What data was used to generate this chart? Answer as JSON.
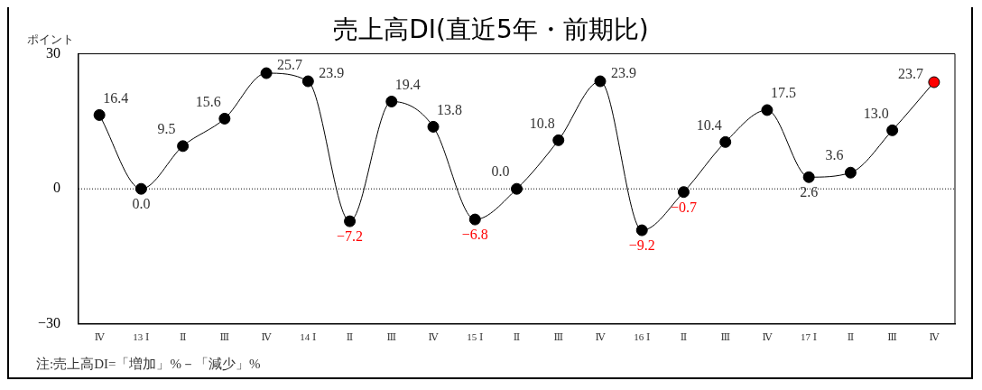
{
  "chart_data": {
    "type": "line",
    "title": "売上高DI(直近5年・前期比)",
    "ylabel": "ポイント",
    "categories": [
      "Ⅳ",
      "13 Ⅰ",
      "Ⅱ",
      "Ⅲ",
      "Ⅳ",
      "14 Ⅰ",
      "Ⅱ",
      "Ⅲ",
      "Ⅳ",
      "15 Ⅰ",
      "Ⅱ",
      "Ⅲ",
      "Ⅳ",
      "16 Ⅰ",
      "Ⅱ",
      "Ⅲ",
      "Ⅳ",
      "17 Ⅰ",
      "Ⅱ",
      "Ⅲ",
      "Ⅳ"
    ],
    "series": [
      {
        "color": "#000000",
        "values": [
          16.4,
          0.0,
          9.5,
          15.6,
          25.7,
          23.9,
          -7.2,
          19.4,
          13.8,
          -6.8,
          0.0,
          10.8,
          23.9,
          -9.2,
          -0.7,
          10.4,
          17.5,
          2.6,
          3.6,
          13.0,
          23.7
        ],
        "colors": [
          "#000000",
          "#000000",
          "#000000",
          "#000000",
          "#000000",
          "#000000",
          "#000000",
          "#000000",
          "#000000",
          "#000000",
          "#000000",
          "#000000",
          "#000000",
          "#000000",
          "#000000",
          "#000000",
          "#000000",
          "#000000",
          "#000000",
          "#000000",
          "#ff0000"
        ]
      }
    ],
    "value_labels": [
      "16.4",
      "0.0",
      "9.5",
      "15.6",
      "25.7",
      "23.9",
      "−7.2",
      "19.4",
      "13.8",
      "−6.8",
      "0.0",
      "10.8",
      "23.9",
      "−9.2",
      "−0.7",
      "10.4",
      "17.5",
      "2.6",
      "3.6",
      "13.0",
      "23.7"
    ],
    "ylim": [
      -30,
      30
    ],
    "yticks": [
      -30,
      0,
      30
    ],
    "grid": false,
    "legend": false,
    "marker": "circle",
    "line_style": "solid",
    "ref_lines": [
      {
        "axis": "y",
        "value": 0,
        "line_style": "dotted",
        "color": "#000000"
      }
    ],
    "annotations": [
      "注:売上高DI=「増加」%－「減少」%"
    ]
  }
}
